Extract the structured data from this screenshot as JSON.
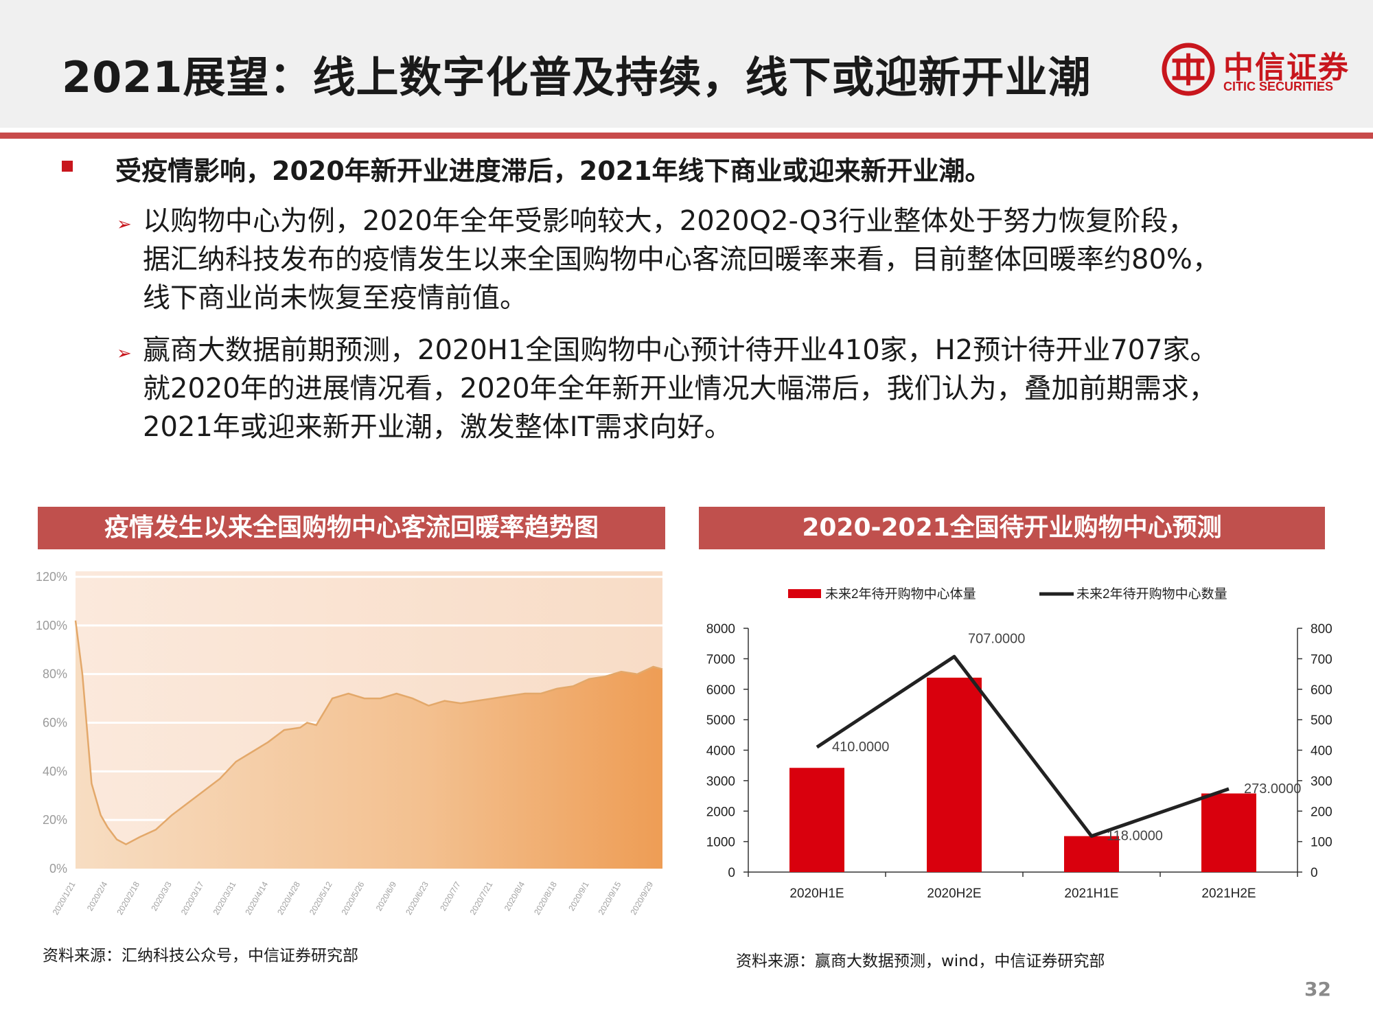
{
  "header": {
    "title": "2021展望：线上数字化普及持续，线下或迎新开业潮",
    "logo_cn": "中信证券",
    "logo_en": "CITIC SECURITIES"
  },
  "main": {
    "lead": "受疫情影响，2020年新开业进度滞后，2021年线下商业或迎来新开业潮。",
    "sub_bullets": [
      {
        "line1": "以购物中心为例，2020年全年受影响较大，2020Q2-Q3行业整体处于努力恢复阶段，",
        "line2": "据汇纳科技发布的疫情发生以来全国购物中心客流回暖率来看，目前整体回暖率约80%，",
        "line3": "线下商业尚未恢复至疫情前值。"
      },
      {
        "line1": "赢商大数据前期预测，2020H1全国购物中心预计待开业410家，H2预计待开业707家。",
        "line2": "就2020年的进展情况看，2020年全年新开业情况大幅滞后，我们认为，叠加前期需求，",
        "line3": "2021年或迎来新开业潮，激发整体IT需求向好。"
      }
    ]
  },
  "left_panel": {
    "title": "疫情发生以来全国购物中心客流回暖率趋势图",
    "source": "资料来源：汇纳科技公众号，中信证券研究部"
  },
  "right_panel": {
    "title": "2020-2021全国待开业购物中心预测",
    "source": "资料来源：赢商大数据预测，wind，中信证券研究部"
  },
  "page_number": "32",
  "colors": {
    "brand_red": "#c8161d",
    "panel_header": "#c0504d",
    "bar_red": "#d9000d",
    "line_black": "#222222",
    "area_orange": "#f0a860"
  },
  "chart_data": [
    {
      "type": "area",
      "title": "",
      "y_tick_labels": [
        "0%",
        "20%",
        "40%",
        "60%",
        "80%",
        "100%",
        "120%"
      ],
      "ylim": [
        0,
        1.2
      ],
      "x_tick_labels": [
        "2020/1/21",
        "2020/2/4",
        "2020/2/18",
        "2020/3/3",
        "2020/3/17",
        "2020/3/31",
        "2020/4/14",
        "2020/4/28",
        "2020/5/12",
        "2020/5/26",
        "2020/6/9",
        "2020/6/23",
        "2020/7/7",
        "2020/7/21",
        "2020/8/4",
        "2020/8/18",
        "2020/9/1",
        "2020/9/15",
        "2020/9/29"
      ],
      "x": [
        "2020/1/21",
        "2020/1/24",
        "2020/1/28",
        "2020/2/1",
        "2020/2/4",
        "2020/2/8",
        "2020/2/12",
        "2020/2/18",
        "2020/2/25",
        "2020/3/3",
        "2020/3/10",
        "2020/3/17",
        "2020/3/24",
        "2020/3/31",
        "2020/4/7",
        "2020/4/14",
        "2020/4/21",
        "2020/4/28",
        "2020/5/1",
        "2020/5/5",
        "2020/5/12",
        "2020/5/19",
        "2020/5/26",
        "2020/6/2",
        "2020/6/9",
        "2020/6/16",
        "2020/6/23",
        "2020/6/30",
        "2020/7/7",
        "2020/7/14",
        "2020/7/21",
        "2020/7/28",
        "2020/8/4",
        "2020/8/11",
        "2020/8/18",
        "2020/8/25",
        "2020/9/1",
        "2020/9/8",
        "2020/9/15",
        "2020/9/22",
        "2020/9/29",
        "2020/10/3"
      ],
      "y": [
        1.02,
        0.8,
        0.35,
        0.22,
        0.17,
        0.12,
        0.1,
        0.13,
        0.16,
        0.22,
        0.27,
        0.32,
        0.37,
        0.44,
        0.48,
        0.52,
        0.57,
        0.58,
        0.6,
        0.59,
        0.7,
        0.72,
        0.7,
        0.7,
        0.72,
        0.7,
        0.67,
        0.69,
        0.68,
        0.69,
        0.7,
        0.71,
        0.72,
        0.72,
        0.74,
        0.75,
        0.78,
        0.79,
        0.81,
        0.8,
        0.83,
        0.82
      ],
      "grid": true,
      "legend": "none"
    },
    {
      "type": "bar",
      "title": "",
      "categories": [
        "2020H1E",
        "2020H2E",
        "2021H1E",
        "2021H2E"
      ],
      "series": [
        {
          "name": "未来2年待开购物中心体量",
          "type": "bar",
          "axis": "left",
          "values": [
            3420,
            6380,
            1180,
            2580
          ]
        },
        {
          "name": "未来2年待开购物中心数量",
          "type": "line",
          "axis": "right",
          "values": [
            410,
            707,
            118,
            273
          ]
        }
      ],
      "data_labels": [
        "410.0000",
        "707.0000",
        "118.0000",
        "273.0000"
      ],
      "y_left_ticks": [
        "0",
        "1000",
        "2000",
        "3000",
        "4000",
        "5000",
        "6000",
        "7000",
        "8000"
      ],
      "y_right_ticks": [
        "0",
        "100",
        "200",
        "300",
        "400",
        "500",
        "600",
        "700",
        "800"
      ],
      "ylim_left": [
        0,
        8000
      ],
      "ylim_right": [
        0,
        800
      ],
      "legend": "top",
      "grid": false
    }
  ]
}
